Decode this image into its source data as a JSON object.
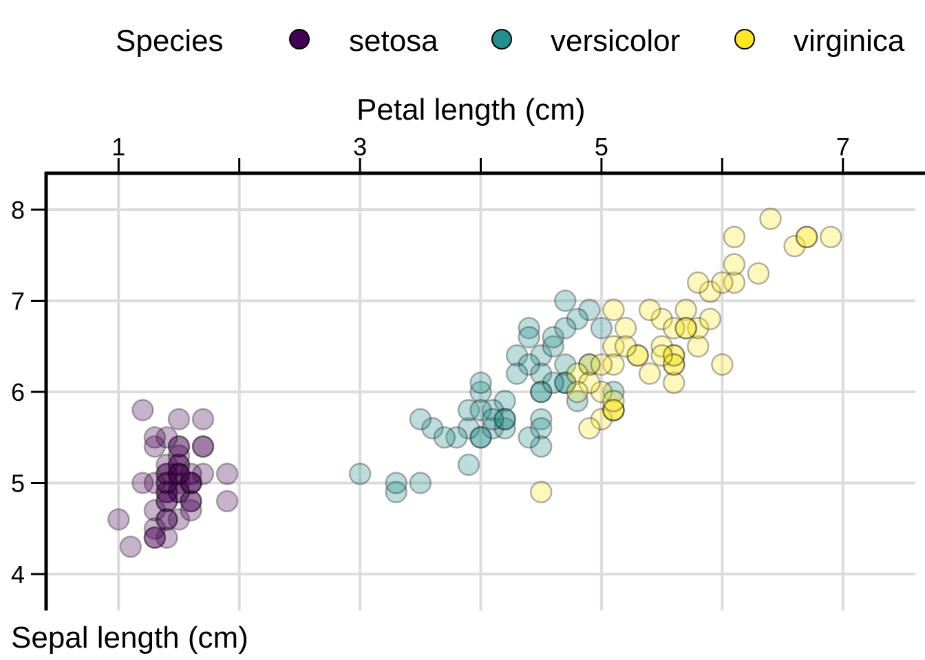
{
  "legend": {
    "title": "Species",
    "items": [
      {
        "label": "setosa",
        "color": "#440154"
      },
      {
        "label": "versicolor",
        "color": "#21908C"
      },
      {
        "label": "virginica",
        "color": "#FDE725"
      }
    ]
  },
  "chart_data": {
    "type": "scatter",
    "xlabel": "Petal length (cm)",
    "ylabel": "Sepal length (cm)",
    "x_axis_position": "top",
    "xlim": [
      0.4,
      7.6
    ],
    "ylim": [
      3.6,
      8.4
    ],
    "x_ticks": [
      1,
      3,
      5,
      7
    ],
    "x_gridlines": [
      1,
      2,
      3,
      4,
      5,
      6,
      7
    ],
    "y_ticks": [
      4,
      5,
      6,
      7,
      8
    ],
    "grid": true,
    "legend_position": "top",
    "point_alpha": 0.3,
    "series": [
      {
        "name": "setosa",
        "color": "#440154",
        "x": [
          1.4,
          1.4,
          1.3,
          1.5,
          1.4,
          1.7,
          1.4,
          1.5,
          1.4,
          1.5,
          1.5,
          1.6,
          1.4,
          1.1,
          1.2,
          1.5,
          1.3,
          1.4,
          1.7,
          1.5,
          1.7,
          1.5,
          1.0,
          1.7,
          1.9,
          1.6,
          1.6,
          1.5,
          1.4,
          1.6,
          1.6,
          1.5,
          1.5,
          1.4,
          1.5,
          1.2,
          1.3,
          1.4,
          1.3,
          1.5,
          1.3,
          1.3,
          1.3,
          1.6,
          1.9,
          1.4,
          1.6,
          1.4,
          1.5,
          1.4
        ],
        "y": [
          5.1,
          4.9,
          4.7,
          4.6,
          5.0,
          5.4,
          4.6,
          5.0,
          4.4,
          4.9,
          5.4,
          4.8,
          4.8,
          4.3,
          5.8,
          5.7,
          5.4,
          5.1,
          5.7,
          5.1,
          5.4,
          5.1,
          4.6,
          5.1,
          4.8,
          5.0,
          5.0,
          5.2,
          5.2,
          4.7,
          4.8,
          5.4,
          5.2,
          5.5,
          4.9,
          5.0,
          5.5,
          4.9,
          4.4,
          5.1,
          5.0,
          4.5,
          4.4,
          5.0,
          5.1,
          4.8,
          5.1,
          4.6,
          5.3,
          5.0
        ]
      },
      {
        "name": "versicolor",
        "color": "#21908C",
        "x": [
          4.7,
          4.5,
          4.9,
          4.0,
          4.6,
          4.5,
          4.7,
          3.3,
          4.6,
          3.9,
          3.5,
          4.2,
          4.0,
          4.7,
          3.6,
          4.4,
          4.5,
          4.1,
          4.5,
          3.9,
          4.8,
          4.0,
          4.9,
          4.7,
          4.3,
          4.4,
          4.8,
          5.0,
          4.5,
          3.5,
          3.8,
          3.7,
          3.9,
          5.1,
          4.5,
          4.5,
          4.7,
          4.4,
          4.1,
          4.0,
          4.4,
          4.6,
          4.0,
          3.3,
          4.2,
          4.2,
          4.2,
          4.3,
          3.0,
          4.1
        ],
        "y": [
          7.0,
          6.4,
          6.9,
          5.5,
          6.5,
          5.7,
          6.3,
          4.9,
          6.6,
          5.2,
          5.0,
          5.9,
          6.0,
          6.1,
          5.6,
          6.7,
          5.6,
          5.8,
          6.2,
          5.6,
          5.9,
          6.1,
          6.3,
          6.1,
          6.4,
          6.6,
          6.8,
          6.7,
          6.0,
          5.7,
          5.5,
          5.5,
          5.8,
          6.0,
          5.4,
          6.0,
          6.7,
          6.3,
          5.6,
          5.5,
          5.5,
          6.1,
          5.8,
          5.0,
          5.6,
          5.7,
          5.7,
          6.2,
          5.1,
          5.7
        ]
      },
      {
        "name": "virginica",
        "color": "#FDE725",
        "x": [
          6.0,
          5.1,
          5.9,
          5.6,
          5.8,
          6.6,
          4.5,
          6.3,
          5.8,
          6.1,
          5.1,
          5.3,
          5.5,
          5.0,
          5.1,
          5.3,
          5.5,
          6.7,
          6.9,
          5.0,
          5.7,
          4.9,
          6.7,
          4.9,
          5.7,
          6.0,
          4.8,
          4.9,
          5.6,
          5.8,
          6.1,
          6.4,
          5.6,
          5.1,
          5.6,
          6.1,
          5.6,
          5.5,
          4.8,
          5.4,
          5.6,
          5.1,
          5.1,
          5.9,
          5.7,
          5.2,
          5.0,
          5.2,
          5.4,
          5.1
        ],
        "y": [
          6.3,
          5.8,
          7.1,
          6.3,
          6.5,
          7.6,
          4.9,
          7.3,
          6.7,
          7.2,
          6.5,
          6.4,
          6.8,
          5.7,
          5.8,
          6.4,
          6.5,
          7.7,
          7.7,
          6.0,
          6.9,
          5.6,
          7.7,
          6.3,
          6.7,
          7.2,
          6.2,
          6.1,
          6.4,
          7.2,
          7.4,
          7.9,
          6.4,
          6.3,
          6.1,
          7.7,
          6.3,
          6.4,
          6.0,
          6.9,
          6.7,
          6.9,
          5.8,
          6.8,
          6.7,
          6.7,
          6.3,
          6.5,
          6.2,
          5.9
        ]
      }
    ]
  }
}
